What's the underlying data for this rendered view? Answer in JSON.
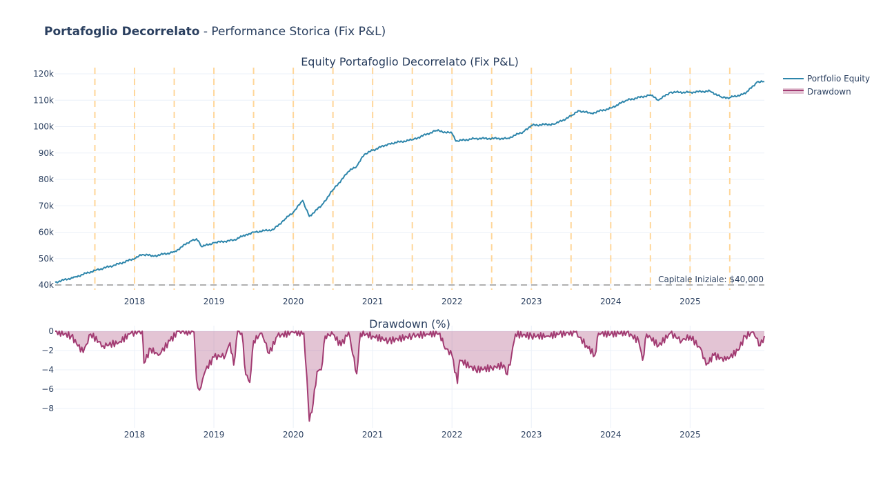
{
  "title": {
    "bold": "Portafoglio Decorrelato",
    "rest": " - Performance Storica (Fix P&L)"
  },
  "chart_data": [
    {
      "type": "line",
      "title": "Equity Portafoglio Decorrelato (Fix P&L)",
      "ylim": [
        40000,
        121500
      ],
      "xlim": [
        "2017-01-01",
        "2025-12-08"
      ],
      "grid": true,
      "y_ticks": [
        "40k",
        "50k",
        "60k",
        "70k",
        "80k",
        "90k",
        "100k",
        "110k",
        "120k"
      ],
      "y_tick_values": [
        40000,
        50000,
        60000,
        70000,
        80000,
        90000,
        100000,
        110000,
        120000
      ],
      "x_ticks": [
        "2018",
        "2019",
        "2020",
        "2021",
        "2022",
        "2023",
        "2024",
        "2025"
      ],
      "series": [
        {
          "name": "Portfolio Equity",
          "color": "#2e86ab",
          "x": [
            "2017-01-01",
            "2017-04-01",
            "2017-07-01",
            "2017-10-01",
            "2018-01-01",
            "2018-02-06",
            "2018-04-01",
            "2018-07-01",
            "2018-09-12",
            "2018-10-12",
            "2018-11-06",
            "2019-01-01",
            "2019-04-01",
            "2019-05-26",
            "2019-07-01",
            "2019-10-01",
            "2019-11-24",
            "2020-01-01",
            "2020-02-14",
            "2020-03-14",
            "2020-05-08",
            "2020-07-01",
            "2020-09-12",
            "2020-10-19",
            "2020-11-24",
            "2021-01-01",
            "2021-03-14",
            "2021-07-01",
            "2021-10-19",
            "2022-01-01",
            "2022-01-19",
            "2022-04-19",
            "2022-09-12",
            "2022-11-24",
            "2023-01-01",
            "2023-04-19",
            "2023-07-01",
            "2023-08-08",
            "2023-10-01",
            "2024-01-01",
            "2024-03-14",
            "2024-07-01",
            "2024-08-08",
            "2024-10-01",
            "2025-01-01",
            "2025-04-01",
            "2025-05-26",
            "2025-07-01",
            "2025-09-12",
            "2025-11-06",
            "2025-12-08"
          ],
          "y": [
            41000,
            43000,
            45500,
            47500,
            50000,
            51500,
            51000,
            52500,
            56500,
            57500,
            54500,
            56000,
            57000,
            59000,
            60000,
            61000,
            65000,
            67500,
            72000,
            66000,
            70000,
            76000,
            83000,
            85000,
            89500,
            91000,
            93500,
            95000,
            98500,
            97500,
            94500,
            95500,
            95500,
            98000,
            100500,
            101000,
            104000,
            106000,
            105000,
            107000,
            110000,
            112000,
            110000,
            113000,
            113000,
            113500,
            111000,
            111000,
            112500,
            117000,
            117000
          ]
        },
        {
          "name": "",
          "color": "#b0b0b0",
          "dash": true,
          "constant": 40000
        }
      ],
      "annotation": "Capitale Iniziale: $40,000",
      "vlines": [
        "2017-07-01",
        "2018-01-01",
        "2018-07-01",
        "2019-01-01",
        "2019-07-01",
        "2020-01-01",
        "2020-07-01",
        "2021-01-01",
        "2021-07-01",
        "2022-01-01",
        "2022-07-01",
        "2023-01-01",
        "2023-07-01",
        "2024-01-01",
        "2024-07-01",
        "2025-01-01",
        "2025-07-01"
      ],
      "vline_color": "#ffd699"
    },
    {
      "type": "area",
      "title": "Drawdown (%)",
      "ylim": [
        -10,
        0.6
      ],
      "xlim": [
        "2017-01-01",
        "2025-12-08"
      ],
      "grid": true,
      "y_ticks": [
        "0",
        "−2",
        "−4",
        "−6",
        "−8"
      ],
      "y_tick_values": [
        0,
        -2,
        -4,
        -6,
        -8
      ],
      "x_ticks": [
        "2018",
        "2019",
        "2020",
        "2021",
        "2022",
        "2023",
        "2024",
        "2025"
      ],
      "series": [
        {
          "name": "Drawdown",
          "color": "#a23b72",
          "fill": "rgba(162,59,114,0.3)",
          "x": [
            "2017-01-01",
            "2017-03-14",
            "2017-05-08",
            "2017-06-12",
            "2017-08-08",
            "2017-10-19",
            "2017-12-14",
            "2018-02-06",
            "2018-02-14",
            "2018-03-14",
            "2018-04-19",
            "2018-06-12",
            "2018-07-19",
            "2018-10-01",
            "2018-10-12",
            "2018-10-26",
            "2018-11-24",
            "2019-01-01",
            "2019-02-24",
            "2019-03-14",
            "2019-04-01",
            "2019-04-19",
            "2019-05-08",
            "2019-05-26",
            "2019-06-14",
            "2019-07-01",
            "2019-08-08",
            "2019-09-12",
            "2019-10-19",
            "2020-01-01",
            "2020-02-19",
            "2020-03-03",
            "2020-03-14",
            "2020-04-01",
            "2020-04-19",
            "2020-05-08",
            "2020-05-26",
            "2020-07-01",
            "2020-08-08",
            "2020-09-12",
            "2020-10-19",
            "2020-11-06",
            "2021-01-01",
            "2021-03-14",
            "2021-07-01",
            "2021-09-12",
            "2021-11-06",
            "2021-11-24",
            "2022-01-01",
            "2022-01-26",
            "2022-02-06",
            "2022-04-19",
            "2022-07-01",
            "2022-08-26",
            "2022-09-12",
            "2022-10-01",
            "2022-10-19",
            "2023-01-01",
            "2023-03-14",
            "2023-05-08",
            "2023-07-19",
            "2023-09-12",
            "2023-10-19",
            "2023-11-06",
            "2024-01-01",
            "2024-03-14",
            "2024-05-08",
            "2024-05-26",
            "2024-06-14",
            "2024-08-08",
            "2024-10-01",
            "2024-11-24",
            "2025-01-01",
            "2025-02-24",
            "2025-03-14",
            "2025-04-19",
            "2025-06-14",
            "2025-08-08",
            "2025-09-12",
            "2025-10-19",
            "2025-11-19",
            "2025-12-08"
          ],
          "y": [
            0,
            -0.5,
            -2.2,
            -0.3,
            -1.5,
            -1.2,
            -0.2,
            0,
            -3.3,
            -1.8,
            -2.5,
            -1,
            0,
            -0.1,
            -5,
            -6.1,
            -4,
            -2.7,
            -2.5,
            -1.2,
            -3.5,
            0,
            -0.2,
            -4.5,
            -5.3,
            -1,
            -0.2,
            -2.3,
            -0.5,
            -0.1,
            -0.2,
            -4.8,
            -9.3,
            -7.5,
            -4.2,
            -4,
            -0.5,
            -0.3,
            -1.5,
            -0.1,
            -4.4,
            -0.2,
            -0.5,
            -1,
            -0.5,
            -0.3,
            -0.2,
            -1.5,
            -2.5,
            -5.4,
            -3,
            -4,
            -3.8,
            -3.5,
            -4.5,
            -2.5,
            -0.3,
            -0.5,
            -0.5,
            -0.3,
            -0.1,
            -1.5,
            -2.5,
            -0.2,
            -0.3,
            -0.1,
            -1,
            -3,
            -0.3,
            -1.5,
            -0.2,
            -1,
            -0.5,
            -2,
            -3.5,
            -2.5,
            -3,
            -2,
            -0.5,
            -0.1,
            -1.5,
            -0.5
          ]
        }
      ]
    }
  ],
  "legend": {
    "position": "top-right",
    "items": [
      "Portfolio Equity",
      "Drawdown"
    ]
  }
}
